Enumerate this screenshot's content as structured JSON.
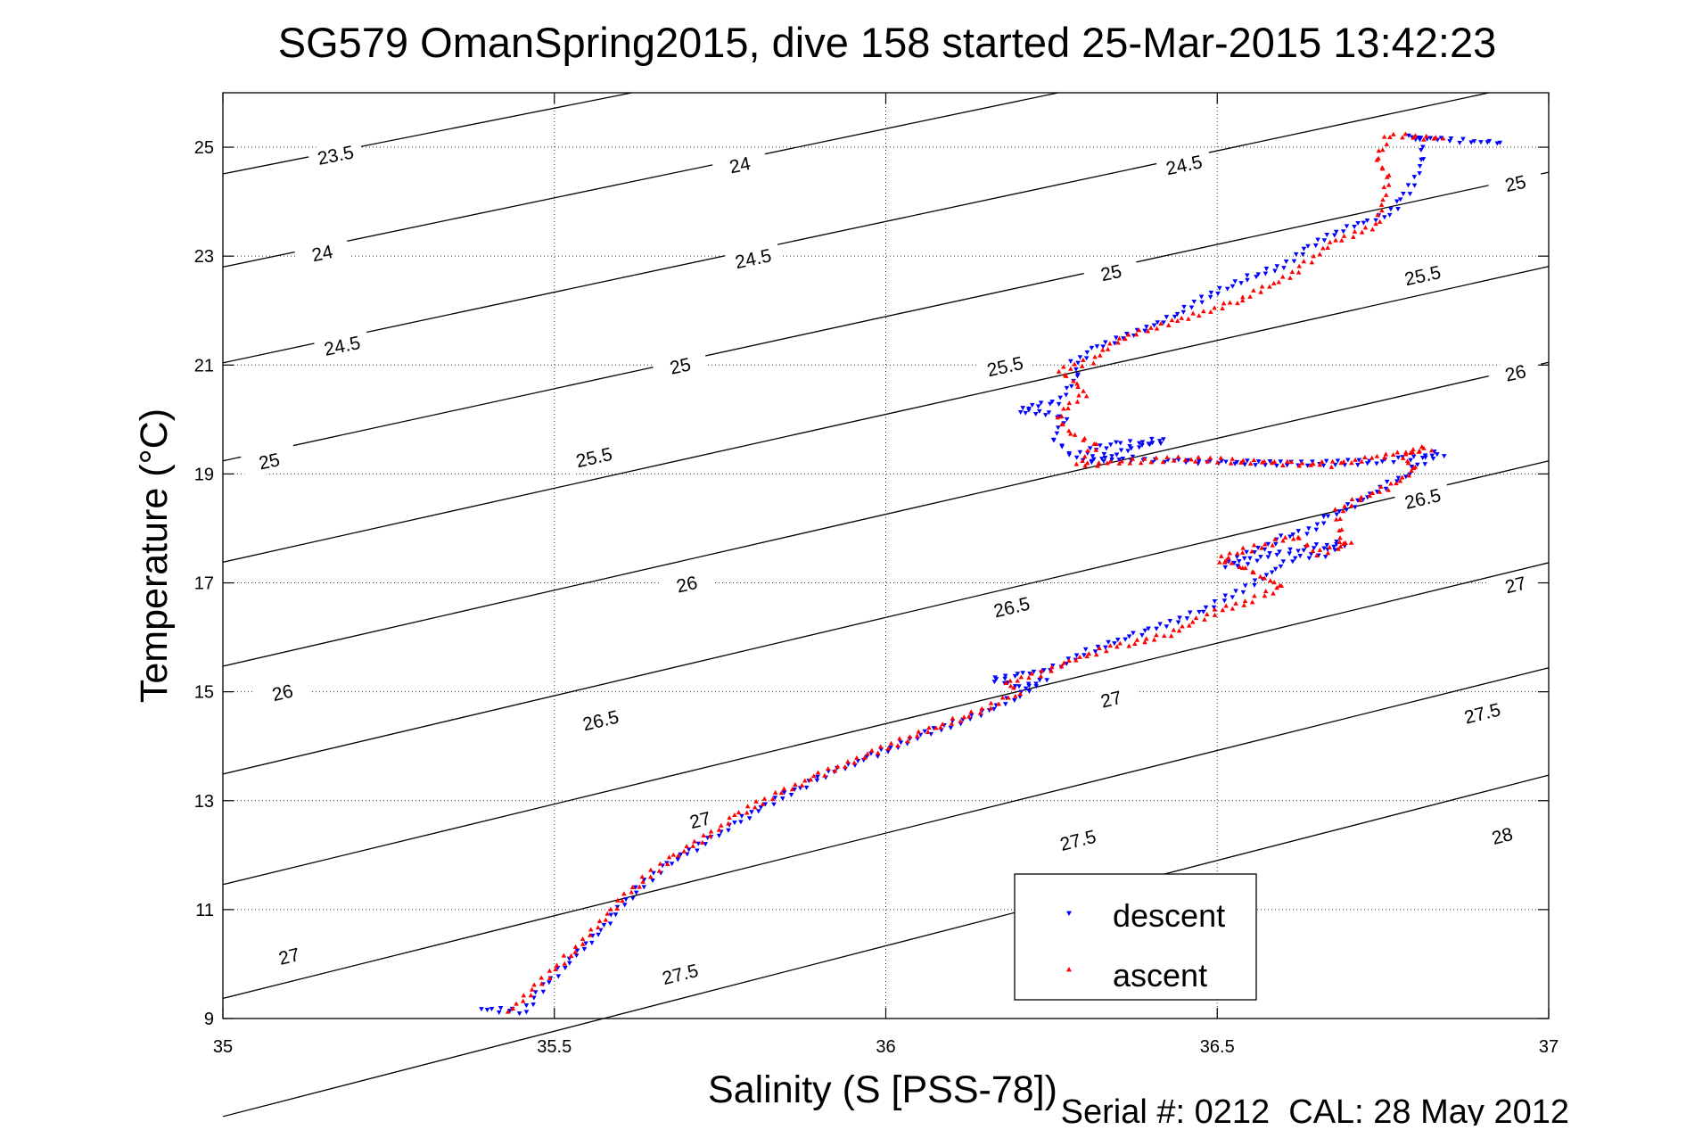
{
  "chart_data": {
    "type": "scatter",
    "title": "SG579 OmanSpring2015, dive 158 started 25-Mar-2015 13:42:23",
    "xlabel": "Salinity (S [PSS-78])",
    "ylabel": "Temperature (°C)",
    "xlim": [
      35,
      37
    ],
    "ylim": [
      9,
      26
    ],
    "x_ticks": [
      35,
      35.5,
      36,
      36.5,
      37
    ],
    "x_tick_labels": [
      "35",
      "35.5",
      "36",
      "36.5",
      "37"
    ],
    "y_ticks": [
      9,
      11,
      13,
      15,
      17,
      19,
      21,
      23,
      25
    ],
    "y_tick_labels": [
      "9",
      "11",
      "13",
      "15",
      "17",
      "19",
      "21",
      "23",
      "25"
    ],
    "grid": true,
    "legend_position": "bottom-right",
    "footer": "Serial #: 0212  CAL: 28 May 2012",
    "density_contours": [
      {
        "level": "23.5",
        "points": [
          [
            35.0,
            24.51
          ],
          [
            35.617,
            26.0
          ]
        ],
        "labels": [
          [
            35.17,
            24.85
          ]
        ]
      },
      {
        "level": "24",
        "points": [
          [
            35.0,
            22.8
          ],
          [
            36.26,
            26.0
          ]
        ],
        "labels": [
          [
            35.15,
            23.05
          ],
          [
            35.78,
            24.67
          ]
        ]
      },
      {
        "level": "24.5",
        "points": [
          [
            35.0,
            21.04
          ],
          [
            36.91,
            26.0
          ]
        ],
        "labels": [
          [
            35.18,
            21.35
          ],
          [
            35.8,
            22.95
          ],
          [
            36.45,
            24.67
          ]
        ]
      },
      {
        "level": "25",
        "points": [
          [
            35.0,
            19.24
          ],
          [
            37.0,
            24.54
          ]
        ],
        "labels": [
          [
            35.07,
            19.23
          ],
          [
            35.69,
            20.98
          ],
          [
            36.34,
            22.69
          ],
          [
            36.95,
            24.33
          ]
        ]
      },
      {
        "level": "25.5",
        "points": [
          [
            35.0,
            17.38
          ],
          [
            37.0,
            22.81
          ]
        ],
        "labels": [
          [
            35.56,
            19.3
          ],
          [
            36.18,
            20.97
          ],
          [
            36.81,
            22.64
          ]
        ]
      },
      {
        "level": "26",
        "points": [
          [
            35.0,
            15.47
          ],
          [
            37.0,
            21.05
          ]
        ],
        "labels": [
          [
            35.09,
            14.98
          ],
          [
            35.7,
            16.97
          ],
          [
            36.95,
            20.85
          ]
        ]
      },
      {
        "level": "26.5",
        "points": [
          [
            35.0,
            13.49
          ],
          [
            37.0,
            19.24
          ]
        ],
        "labels": [
          [
            35.57,
            14.47
          ],
          [
            36.19,
            16.55
          ],
          [
            36.81,
            18.54
          ]
        ]
      },
      {
        "level": "27",
        "points": [
          [
            35.0,
            11.46
          ],
          [
            37.0,
            17.37
          ]
        ],
        "labels": [
          [
            35.1,
            10.14
          ],
          [
            35.72,
            12.64
          ],
          [
            36.34,
            14.86
          ],
          [
            36.95,
            16.96
          ]
        ]
      },
      {
        "level": "27.5",
        "points": [
          [
            35.0,
            9.37
          ],
          [
            37.0,
            15.44
          ]
        ],
        "labels": [
          [
            35.69,
            9.81
          ],
          [
            36.29,
            12.27
          ],
          [
            36.9,
            14.6
          ]
        ]
      },
      {
        "level": "28",
        "points": [
          [
            35.0,
            7.2
          ],
          [
            37.0,
            13.47
          ]
        ],
        "labels": [
          [
            36.93,
            12.35
          ]
        ]
      }
    ],
    "series": [
      {
        "name": "descent",
        "color": "#0000ff",
        "marker": "triangle-down",
        "points": [
          [
            35.39,
            9.15
          ],
          [
            35.455,
            9.1
          ],
          [
            35.48,
            9.5
          ],
          [
            35.52,
            10.0
          ],
          [
            35.57,
            10.6
          ],
          [
            35.62,
            11.3
          ],
          [
            35.67,
            11.8
          ],
          [
            35.74,
            12.3
          ],
          [
            35.82,
            12.9
          ],
          [
            35.9,
            13.4
          ],
          [
            35.98,
            13.8
          ],
          [
            36.06,
            14.2
          ],
          [
            36.14,
            14.55
          ],
          [
            36.2,
            14.9
          ],
          [
            36.24,
            15.2
          ],
          [
            36.21,
            15.05
          ],
          [
            36.16,
            15.2
          ],
          [
            36.2,
            15.3
          ],
          [
            36.24,
            15.35
          ],
          [
            36.32,
            15.8
          ],
          [
            36.4,
            16.1
          ],
          [
            36.5,
            16.6
          ],
          [
            36.56,
            17.0
          ],
          [
            36.61,
            17.4
          ],
          [
            36.66,
            17.5
          ],
          [
            36.69,
            17.7
          ],
          [
            36.62,
            17.6
          ],
          [
            36.56,
            17.4
          ],
          [
            36.51,
            17.3
          ],
          [
            36.6,
            17.8
          ],
          [
            36.64,
            17.95
          ],
          [
            36.67,
            18.2
          ],
          [
            36.72,
            18.5
          ],
          [
            36.76,
            18.8
          ],
          [
            36.79,
            19.0
          ],
          [
            36.81,
            19.2
          ],
          [
            36.84,
            19.35
          ],
          [
            36.74,
            19.2
          ],
          [
            36.62,
            19.15
          ],
          [
            36.5,
            19.2
          ],
          [
            36.36,
            19.25
          ],
          [
            36.3,
            19.2
          ],
          [
            36.42,
            19.6
          ],
          [
            36.34,
            19.5
          ],
          [
            36.28,
            19.3
          ],
          [
            36.25,
            19.65
          ],
          [
            36.27,
            20.0
          ],
          [
            36.24,
            20.1
          ],
          [
            36.2,
            20.15
          ],
          [
            36.26,
            20.3
          ],
          [
            36.28,
            20.6
          ],
          [
            36.29,
            20.75
          ],
          [
            36.28,
            21.0
          ],
          [
            36.32,
            21.3
          ],
          [
            36.38,
            21.6
          ],
          [
            36.44,
            21.9
          ],
          [
            36.48,
            22.2
          ],
          [
            36.52,
            22.45
          ],
          [
            36.6,
            22.8
          ],
          [
            36.66,
            23.3
          ],
          [
            36.72,
            23.6
          ],
          [
            36.76,
            23.75
          ],
          [
            36.78,
            24.0
          ],
          [
            36.8,
            24.4
          ],
          [
            36.81,
            24.7
          ],
          [
            36.81,
            25.1
          ],
          [
            36.79,
            25.15
          ],
          [
            36.93,
            25.05
          ]
        ]
      },
      {
        "name": "ascent",
        "color": "#ff0000",
        "marker": "triangle-up",
        "points": [
          [
            35.43,
            9.1
          ],
          [
            35.45,
            9.3
          ],
          [
            35.49,
            9.75
          ],
          [
            35.54,
            10.35
          ],
          [
            35.58,
            10.9
          ],
          [
            35.63,
            11.5
          ],
          [
            35.68,
            11.95
          ],
          [
            35.74,
            12.4
          ],
          [
            35.78,
            12.75
          ],
          [
            35.82,
            13.0
          ],
          [
            35.9,
            13.45
          ],
          [
            35.98,
            13.85
          ],
          [
            36.06,
            14.25
          ],
          [
            36.14,
            14.6
          ],
          [
            36.2,
            14.95
          ],
          [
            36.18,
            15.15
          ],
          [
            36.23,
            15.3
          ],
          [
            36.27,
            15.5
          ],
          [
            36.34,
            15.8
          ],
          [
            36.42,
            16.0
          ],
          [
            36.5,
            16.45
          ],
          [
            36.56,
            16.7
          ],
          [
            36.6,
            16.9
          ],
          [
            36.53,
            17.3
          ],
          [
            36.5,
            17.4
          ],
          [
            36.55,
            17.6
          ],
          [
            36.62,
            17.85
          ],
          [
            36.65,
            17.5
          ],
          [
            36.7,
            17.75
          ],
          [
            36.69,
            17.6
          ],
          [
            36.68,
            18.3
          ],
          [
            36.72,
            18.55
          ],
          [
            36.77,
            18.8
          ],
          [
            36.8,
            19.05
          ],
          [
            36.78,
            19.3
          ],
          [
            36.82,
            19.45
          ],
          [
            36.67,
            19.15
          ],
          [
            36.55,
            19.2
          ],
          [
            36.45,
            19.25
          ],
          [
            36.35,
            19.2
          ],
          [
            36.29,
            19.15
          ],
          [
            36.32,
            19.5
          ],
          [
            36.28,
            19.7
          ],
          [
            36.26,
            20.0
          ],
          [
            36.28,
            20.25
          ],
          [
            36.3,
            20.45
          ],
          [
            36.28,
            20.7
          ],
          [
            36.26,
            20.9
          ],
          [
            36.31,
            21.05
          ],
          [
            36.36,
            21.5
          ],
          [
            36.44,
            21.8
          ],
          [
            36.52,
            22.1
          ],
          [
            36.6,
            22.55
          ],
          [
            36.68,
            23.25
          ],
          [
            36.74,
            23.55
          ],
          [
            36.75,
            24.0
          ],
          [
            36.76,
            24.4
          ],
          [
            36.74,
            24.8
          ],
          [
            36.76,
            25.2
          ],
          [
            36.81,
            25.15
          ],
          [
            36.84,
            25.15
          ]
        ]
      }
    ]
  }
}
